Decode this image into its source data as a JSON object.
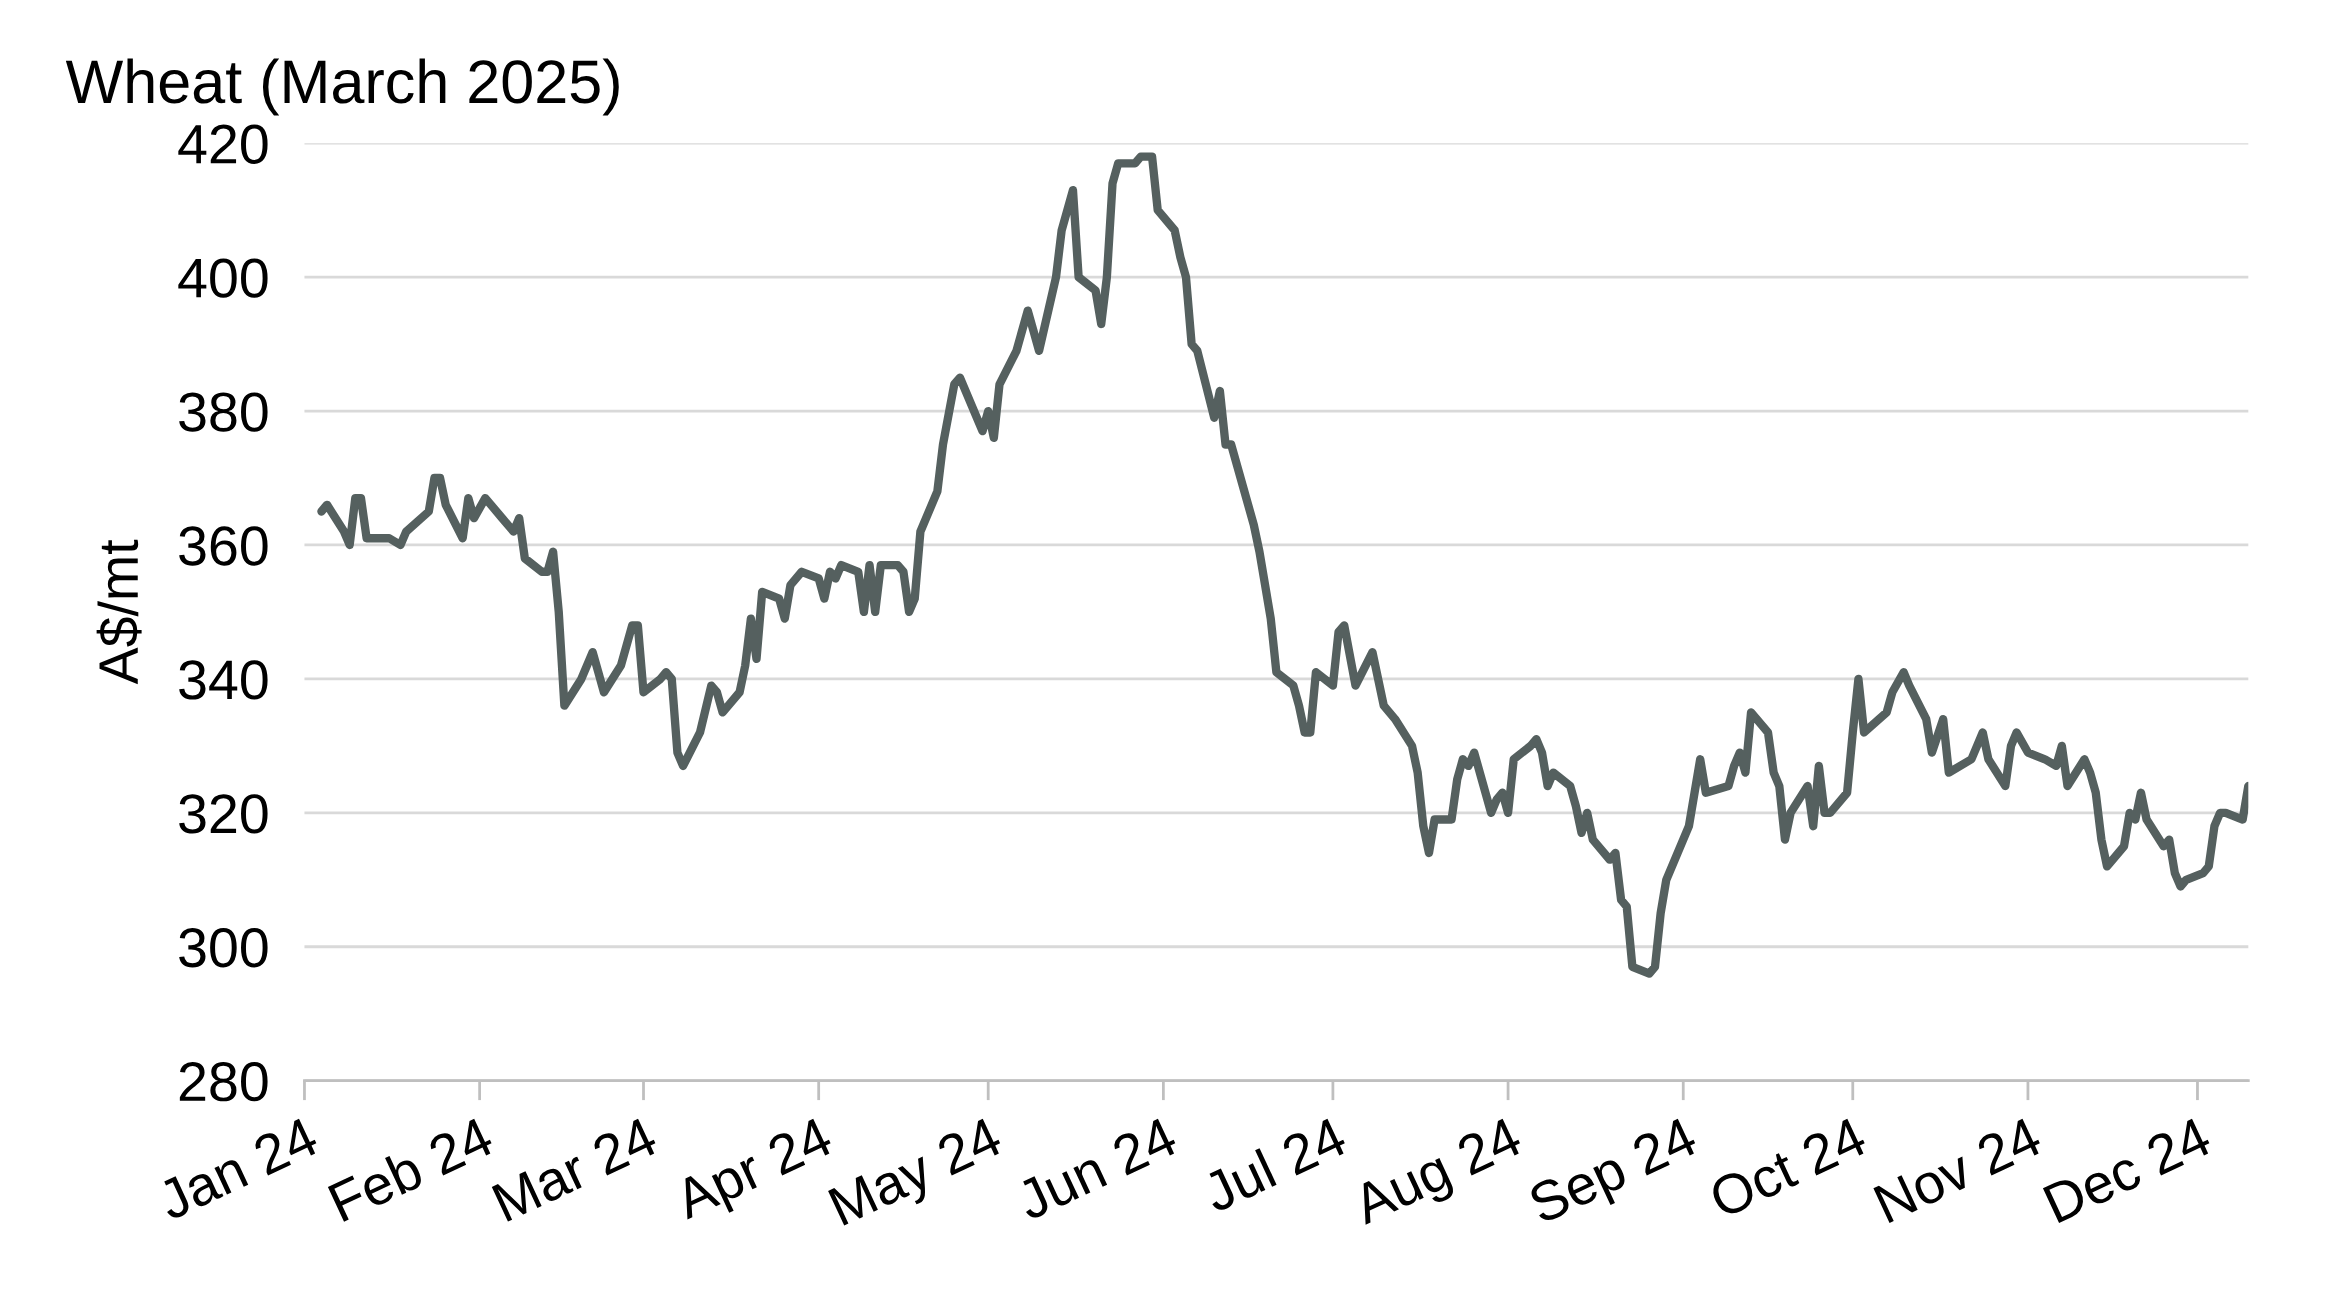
{
  "chart_data": {
    "type": "line",
    "title": "Wheat (March 2025)",
    "ylabel": "A$/mt",
    "ylim": [
      280,
      420
    ],
    "yticks": [
      280,
      300,
      320,
      340,
      360,
      380,
      400,
      420
    ],
    "xlim": [
      "2024-01-01",
      "2024-12-10"
    ],
    "xticks": [
      {
        "value": "2024-01-01",
        "label": "Jan 24"
      },
      {
        "value": "2024-02-01",
        "label": "Feb 24"
      },
      {
        "value": "2024-03-01",
        "label": "Mar 24"
      },
      {
        "value": "2024-04-01",
        "label": "Apr 24"
      },
      {
        "value": "2024-05-01",
        "label": "May 24"
      },
      {
        "value": "2024-06-01",
        "label": "Jun 24"
      },
      {
        "value": "2024-07-01",
        "label": "Jul 24"
      },
      {
        "value": "2024-08-01",
        "label": "Aug 24"
      },
      {
        "value": "2024-09-01",
        "label": "Sep 24"
      },
      {
        "value": "2024-10-01",
        "label": "Oct 24"
      },
      {
        "value": "2024-11-01",
        "label": "Nov 24"
      },
      {
        "value": "2024-12-01",
        "label": "Dec 24"
      }
    ],
    "grid": "y",
    "legend": false,
    "marker": "none",
    "line_style": "solid",
    "x": [
      "2024-01-04",
      "2024-01-05",
      "2024-01-08",
      "2024-01-09",
      "2024-01-10",
      "2024-01-11",
      "2024-01-12",
      "2024-01-16",
      "2024-01-18",
      "2024-01-19",
      "2024-01-23",
      "2024-01-24",
      "2024-01-25",
      "2024-01-26",
      "2024-01-29",
      "2024-01-30",
      "2024-01-31",
      "2024-02-02",
      "2024-02-05",
      "2024-02-07",
      "2024-02-08",
      "2024-02-09",
      "2024-02-12",
      "2024-02-13",
      "2024-02-14",
      "2024-02-15",
      "2024-02-16",
      "2024-02-19",
      "2024-02-21",
      "2024-02-22",
      "2024-02-23",
      "2024-02-26",
      "2024-02-28",
      "2024-02-29",
      "2024-03-01",
      "2024-03-04",
      "2024-03-05",
      "2024-03-06",
      "2024-03-07",
      "2024-03-08",
      "2024-03-11",
      "2024-03-13",
      "2024-03-14",
      "2024-03-15",
      "2024-03-18",
      "2024-03-19",
      "2024-03-20",
      "2024-03-21",
      "2024-03-22",
      "2024-03-25",
      "2024-03-26",
      "2024-03-27",
      "2024-03-29",
      "2024-04-01",
      "2024-04-02",
      "2024-04-03",
      "2024-04-04",
      "2024-04-05",
      "2024-04-08",
      "2024-04-09",
      "2024-04-10",
      "2024-04-11",
      "2024-04-12",
      "2024-04-15",
      "2024-04-16",
      "2024-04-17",
      "2024-04-18",
      "2024-04-19",
      "2024-04-22",
      "2024-04-23",
      "2024-04-25",
      "2024-04-26",
      "2024-04-29",
      "2024-04-30",
      "2024-05-01",
      "2024-05-02",
      "2024-05-03",
      "2024-05-06",
      "2024-05-08",
      "2024-05-09",
      "2024-05-10",
      "2024-05-13",
      "2024-05-14",
      "2024-05-16",
      "2024-05-17",
      "2024-05-20",
      "2024-05-21",
      "2024-05-22",
      "2024-05-23",
      "2024-05-24",
      "2024-05-27",
      "2024-05-28",
      "2024-05-29",
      "2024-05-30",
      "2024-05-31",
      "2024-06-03",
      "2024-06-04",
      "2024-06-05",
      "2024-06-06",
      "2024-06-07",
      "2024-06-10",
      "2024-06-11",
      "2024-06-12",
      "2024-06-13",
      "2024-06-17",
      "2024-06-18",
      "2024-06-20",
      "2024-06-21",
      "2024-06-24",
      "2024-06-25",
      "2024-06-26",
      "2024-06-27",
      "2024-06-28",
      "2024-07-01",
      "2024-07-02",
      "2024-07-03",
      "2024-07-05",
      "2024-07-08",
      "2024-07-09",
      "2024-07-10",
      "2024-07-11",
      "2024-07-12",
      "2024-07-15",
      "2024-07-16",
      "2024-07-17",
      "2024-07-18",
      "2024-07-19",
      "2024-07-22",
      "2024-07-23",
      "2024-07-24",
      "2024-07-25",
      "2024-07-26",
      "2024-07-29",
      "2024-07-30",
      "2024-07-31",
      "2024-08-01",
      "2024-08-02",
      "2024-08-05",
      "2024-08-06",
      "2024-08-07",
      "2024-08-08",
      "2024-08-09",
      "2024-08-12",
      "2024-08-13",
      "2024-08-14",
      "2024-08-15",
      "2024-08-16",
      "2024-08-19",
      "2024-08-20",
      "2024-08-21",
      "2024-08-22",
      "2024-08-23",
      "2024-08-26",
      "2024-08-27",
      "2024-08-28",
      "2024-08-29",
      "2024-09-02",
      "2024-09-03",
      "2024-09-04",
      "2024-09-05",
      "2024-09-09",
      "2024-09-10",
      "2024-09-11",
      "2024-09-12",
      "2024-09-13",
      "2024-09-16",
      "2024-09-17",
      "2024-09-18",
      "2024-09-19",
      "2024-09-20",
      "2024-09-23",
      "2024-09-24",
      "2024-09-25",
      "2024-09-26",
      "2024-09-27",
      "2024-09-30",
      "2024-10-01",
      "2024-10-02",
      "2024-10-03",
      "2024-10-07",
      "2024-10-08",
      "2024-10-10",
      "2024-10-11",
      "2024-10-14",
      "2024-10-15",
      "2024-10-17",
      "2024-10-18",
      "2024-10-22",
      "2024-10-24",
      "2024-10-25",
      "2024-10-28",
      "2024-10-29",
      "2024-10-30",
      "2024-11-01",
      "2024-11-04",
      "2024-11-06",
      "2024-11-07",
      "2024-11-08",
      "2024-11-11",
      "2024-11-12",
      "2024-11-13",
      "2024-11-14",
      "2024-11-15",
      "2024-11-18",
      "2024-11-19",
      "2024-11-20",
      "2024-11-21",
      "2024-11-22",
      "2024-11-25",
      "2024-11-26",
      "2024-11-27",
      "2024-11-28",
      "2024-11-29",
      "2024-12-02",
      "2024-12-03",
      "2024-12-04",
      "2024-12-05",
      "2024-12-06",
      "2024-12-09",
      "2024-12-10"
    ],
    "series": [
      {
        "color": "#55605f",
        "values": [
          365,
          366,
          362,
          360,
          367,
          367,
          361,
          361,
          360,
          362,
          365,
          370,
          370,
          366,
          361,
          367,
          364,
          367,
          364,
          362,
          364,
          358,
          356,
          356,
          359,
          350,
          336,
          340,
          344,
          341,
          338,
          342,
          348,
          348,
          338,
          340,
          341,
          340,
          329,
          327,
          332,
          339,
          338,
          335,
          338,
          342,
          349,
          343,
          353,
          352,
          349,
          354,
          356,
          355,
          352,
          356,
          355,
          357,
          356,
          350,
          357,
          350,
          357,
          357,
          356,
          350,
          352,
          362,
          368,
          375,
          384,
          385,
          379,
          377,
          380,
          376,
          384,
          389,
          395,
          392,
          389,
          400,
          407,
          413,
          400,
          398,
          393,
          400,
          414,
          417,
          417,
          418,
          418,
          418,
          410,
          407,
          403,
          400,
          390,
          389,
          379,
          383,
          375,
          375,
          363,
          359,
          349,
          341,
          339,
          336,
          332,
          332,
          341,
          339,
          347,
          348,
          339,
          344,
          340,
          336,
          335,
          334,
          330,
          326,
          318,
          314,
          319,
          319,
          325,
          328,
          327,
          329,
          320,
          322,
          323,
          320,
          328,
          330,
          331,
          329,
          324,
          326,
          324,
          321,
          317,
          320,
          316,
          313,
          314,
          307,
          306,
          297,
          296,
          297,
          305,
          310,
          318,
          323,
          328,
          323,
          324,
          327,
          329,
          326,
          335,
          332,
          326,
          324,
          316,
          320,
          324,
          318,
          327,
          320,
          320,
          323,
          332,
          340,
          332,
          335,
          338,
          341,
          339,
          334,
          329,
          334,
          326,
          328,
          332,
          328,
          324,
          330,
          332,
          329,
          328,
          327,
          330,
          324,
          328,
          326,
          323,
          316,
          312,
          315,
          320,
          319,
          323,
          319,
          315,
          316,
          311,
          309,
          310,
          311,
          312,
          318,
          320,
          320,
          319,
          324
        ]
      }
    ]
  }
}
